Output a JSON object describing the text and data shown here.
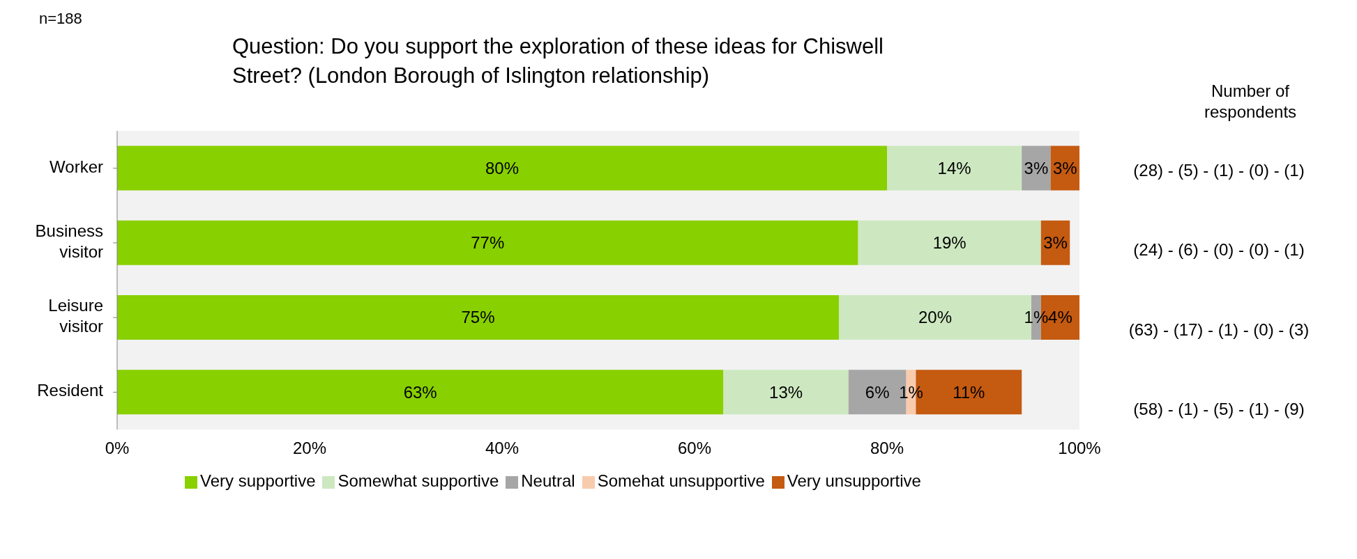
{
  "chart_data": {
    "type": "bar",
    "orientation": "horizontal",
    "stacked": true,
    "title": "Question: Do you support the exploration of these ideas for Chiswell Street? (London Borough of Islington relationship)",
    "categories": [
      "Worker",
      "Business visitor",
      "Leisure visitor",
      "Resident"
    ],
    "series": [
      {
        "name": "Very supportive",
        "color": "#88d000",
        "values": [
          80,
          77,
          75,
          63
        ],
        "value_labels": [
          "80%",
          "77%",
          "75%",
          "63%"
        ]
      },
      {
        "name": "Somewhat supportive",
        "color": "#cde8c0",
        "values": [
          14,
          19,
          20,
          13
        ],
        "value_labels": [
          "14%",
          "19%",
          "20%",
          "13%"
        ]
      },
      {
        "name": "Neutral",
        "color": "#a6a6a6",
        "values": [
          3,
          0,
          1,
          6
        ],
        "value_labels": [
          "3%",
          null,
          "1%",
          "6%"
        ]
      },
      {
        "name": "Somehat unsupportive",
        "color": "#f8cbad",
        "values": [
          0,
          0,
          0,
          1
        ],
        "value_labels": [
          null,
          null,
          null,
          "1%"
        ]
      },
      {
        "name": "Very unsupportive",
        "color": "#c55a11",
        "values": [
          3,
          3,
          4,
          11
        ],
        "value_labels": [
          "3%",
          "3%",
          "4%",
          "11%"
        ]
      }
    ],
    "xlim": [
      0,
      100
    ],
    "xticks": [
      {
        "value": 0,
        "label": "0%"
      },
      {
        "value": 20,
        "label": "20%"
      },
      {
        "value": 40,
        "label": "40%"
      },
      {
        "value": 60,
        "label": "60%"
      },
      {
        "value": 80,
        "label": "80%"
      },
      {
        "value": 100,
        "label": "100%"
      }
    ],
    "legend": "bottom",
    "grid": false,
    "annotations": [
      "n=188",
      "Number of respondents",
      "(28) - (5) - (1) - (0) - (1)",
      "(24) - (6) - (0) - (0) - (1)",
      "(63) - (17) - (1) - (0) - (3)",
      "(58) - (1) - (5) - (1) - (9)"
    ]
  }
}
